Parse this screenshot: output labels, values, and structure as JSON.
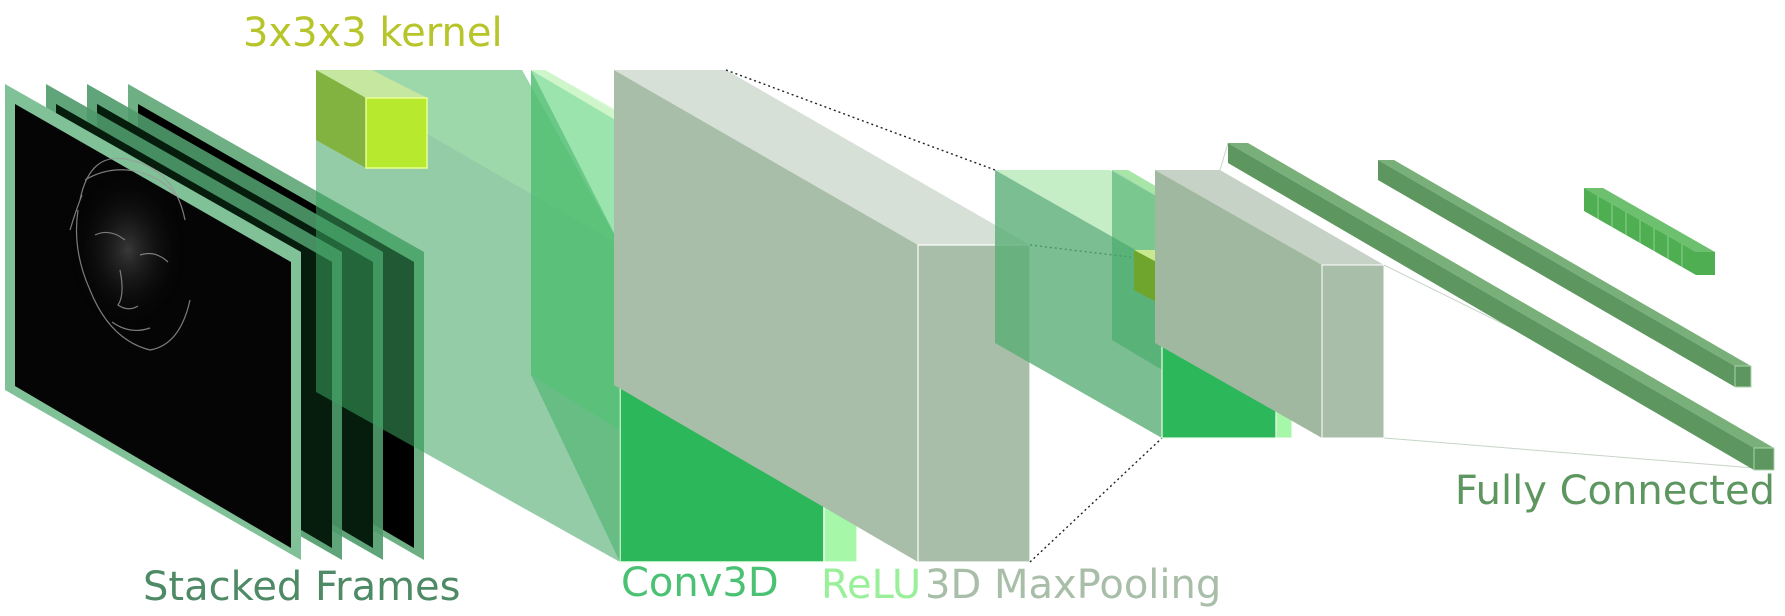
{
  "labels": {
    "kernel": "3x3x3 kernel",
    "stacked_frames": "Stacked Frames",
    "conv3d": "Conv3D",
    "relu": "ReLU",
    "maxpool": "3D MaxPooling",
    "fully_connected": "Fully Connected"
  },
  "colors": {
    "kernel": "#b6c529",
    "frames": "#4e8a66",
    "conv3d": "#2cb75b",
    "relu": "#9af09a",
    "maxpool": "#a8bea8",
    "fully_connected": "#5e9660"
  }
}
